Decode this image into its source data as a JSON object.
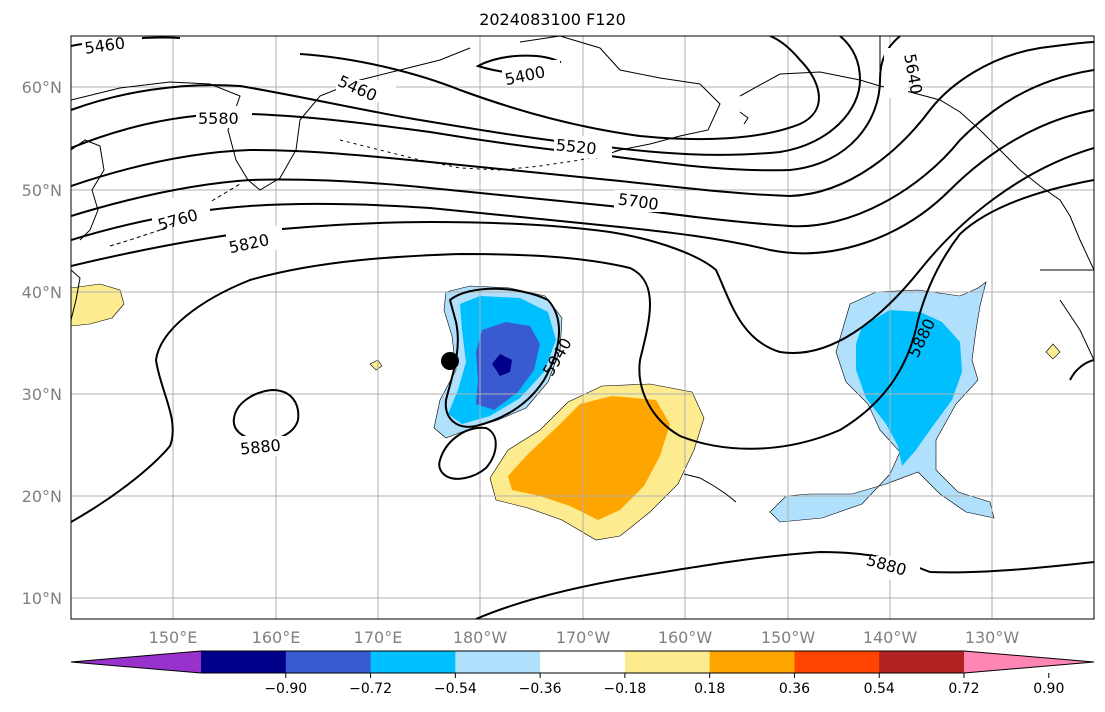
{
  "title": "2024083100 F120",
  "lat_labels": [
    "60°N",
    "50°N",
    "40°N",
    "30°N",
    "20°N",
    "10°N"
  ],
  "lon_labels": [
    "150°E",
    "160°E",
    "170°E",
    "180°W",
    "170°W",
    "160°W",
    "150°W",
    "140°W",
    "130°W"
  ],
  "contour_labels": [
    "5460",
    "5400",
    "5460",
    "5580",
    "5520",
    "5640",
    "5760",
    "5700",
    "5820",
    "5940",
    "5880",
    "5880",
    "5880"
  ],
  "colorbar": {
    "ticks": [
      "−0.90",
      "−0.72",
      "−0.54",
      "−0.36",
      "−0.18",
      "0.18",
      "0.36",
      "0.54",
      "0.72",
      "0.90"
    ],
    "colors": [
      "#9932cc",
      "#00008b",
      "#3a5bd0",
      "#00bfff",
      "#b0e0fb",
      "#ffffff",
      "#fdec8f",
      "#ffa500",
      "#ff4500",
      "#b22222",
      "#ff85b4"
    ]
  },
  "colors": {
    "contour": "#000000",
    "grid": "#b0b0b0",
    "coast": "#000000",
    "axis_label": "#808080"
  },
  "marker": "storm-center-dot"
}
